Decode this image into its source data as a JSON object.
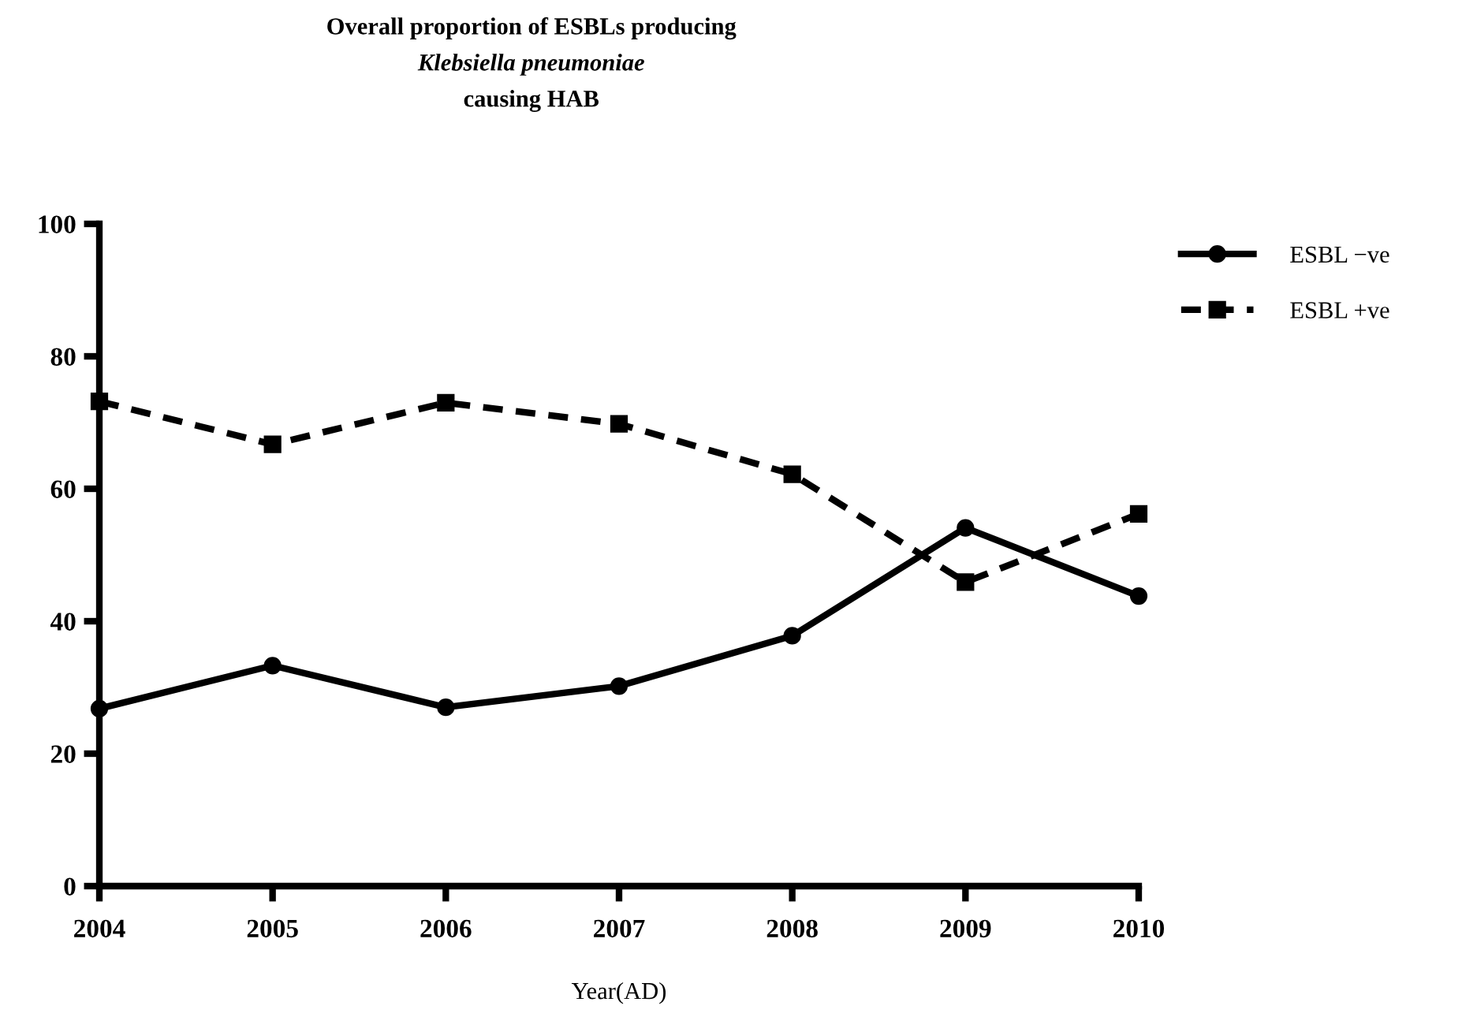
{
  "chart_data": {
    "type": "line",
    "title": "Overall proportion of ESBLs producing\nKlebsiella pneumoniae\ncausing HAB",
    "xlabel": "Year(AD)",
    "x": [
      2004,
      2005,
      2006,
      2007,
      2008,
      2009,
      2010
    ],
    "series": [
      {
        "name": "ESBL −ve",
        "color": "#000000",
        "marker": "circle",
        "line_style": "solid",
        "values": [
          26.8,
          33.3,
          27.0,
          30.2,
          37.8,
          54.1,
          43.8
        ]
      },
      {
        "name": "ESBL +ve",
        "color": "#000000",
        "marker": "square",
        "line_style": "dashed",
        "values": [
          73.2,
          66.7,
          73.0,
          69.8,
          62.2,
          45.9,
          56.2
        ]
      }
    ],
    "xlim": [
      2004,
      2010
    ],
    "xticks": [
      2004,
      2005,
      2006,
      2007,
      2008,
      2009,
      2010
    ],
    "ylim": [
      0,
      100
    ],
    "yticks": [
      0,
      20,
      40,
      60,
      80,
      100
    ],
    "grid": false,
    "legend": "top right"
  }
}
